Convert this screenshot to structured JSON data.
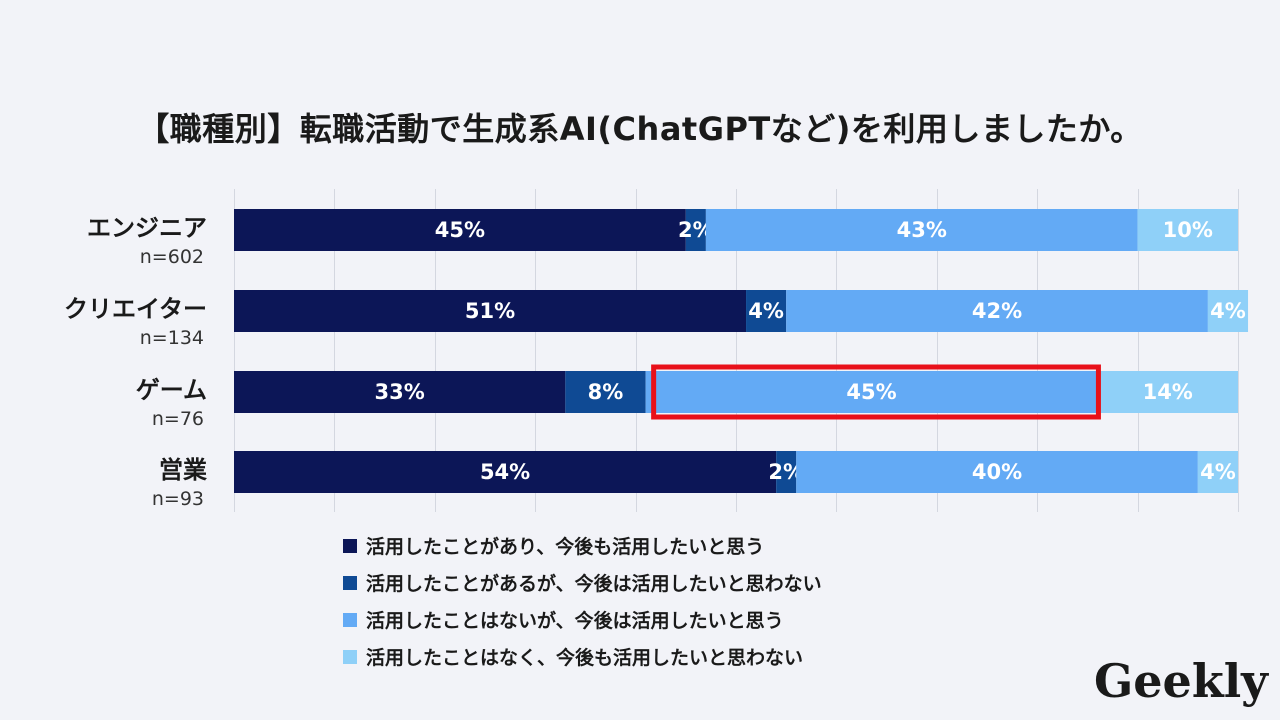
{
  "title": "【職種別】転職活動で生成系AI(ChatGPTなど)を利用しましたか。",
  "logo_text": "Geekly",
  "highlight_color": "#e8101a",
  "chart_data": {
    "type": "bar",
    "orientation": "horizontal",
    "stacked": true,
    "unit": "%",
    "xlim": [
      0,
      100
    ],
    "grid": true,
    "legend_position": "bottom",
    "categories": [
      {
        "name": "エンジニア",
        "n": "n=602"
      },
      {
        "name": "クリエイター",
        "n": "n=134"
      },
      {
        "name": "ゲーム",
        "n": "n=76"
      },
      {
        "name": "営業",
        "n": "n=93"
      }
    ],
    "series": [
      {
        "name": "活用したことがあり、今後も活用したいと思う",
        "color": "#0c1657",
        "values": [
          45,
          51,
          33,
          54
        ]
      },
      {
        "name": "活用したことがあるが、今後は活用したいと思わない",
        "color": "#0f4a94",
        "values": [
          2,
          4,
          8,
          2
        ]
      },
      {
        "name": "活用したことはないが、今後は活用したいと思う",
        "color": "#63aaf5",
        "values": [
          43,
          42,
          45,
          40
        ]
      },
      {
        "name": "活用したことはなく、今後も活用したいと思わない",
        "color": "#8fd0f8",
        "values": [
          10,
          4,
          14,
          4
        ]
      }
    ],
    "highlight": {
      "category_index": 2,
      "series_index": 2
    }
  }
}
